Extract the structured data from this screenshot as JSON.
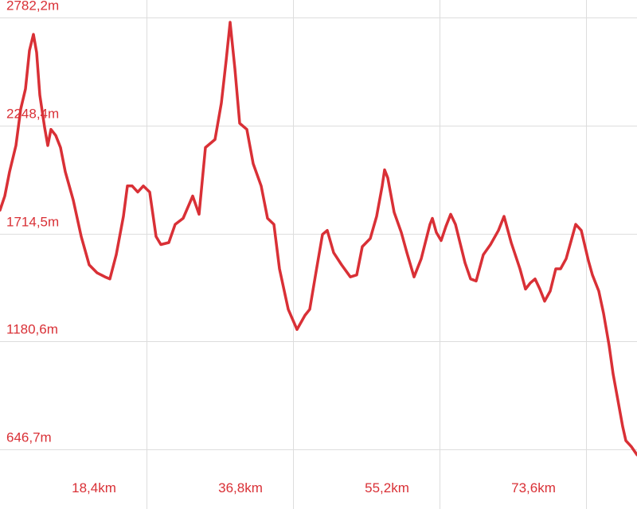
{
  "colors": {
    "line": "#d93036",
    "label": "#d93036",
    "grid": "#dddddd"
  },
  "chart_data": {
    "type": "line",
    "title": "",
    "xlabel": "",
    "ylabel": "",
    "grid": true,
    "legend": "none",
    "x_unit": "km",
    "y_unit": "m",
    "xlim": [
      0,
      80
    ],
    "ylim": [
      588,
      2870
    ],
    "y_ticks": [
      {
        "value": 2782.2,
        "label": "2782,2m"
      },
      {
        "value": 2248.4,
        "label": "2248,4m"
      },
      {
        "value": 1714.5,
        "label": "1714,5m"
      },
      {
        "value": 1180.6,
        "label": "1180,6m"
      },
      {
        "value": 646.7,
        "label": "646,7m"
      }
    ],
    "x_ticks": [
      {
        "value": 18.4,
        "label": "18,4km"
      },
      {
        "value": 36.8,
        "label": "36,8km"
      },
      {
        "value": 55.2,
        "label": "55,2km"
      },
      {
        "value": 73.6,
        "label": "73,6km"
      }
    ],
    "series": [
      {
        "values": [
          [
            0.0,
            1830
          ],
          [
            0.6,
            1900
          ],
          [
            1.2,
            2020
          ],
          [
            2.0,
            2150
          ],
          [
            2.6,
            2330
          ],
          [
            3.2,
            2430
          ],
          [
            3.7,
            2620
          ],
          [
            4.2,
            2700
          ],
          [
            4.6,
            2610
          ],
          [
            5.0,
            2400
          ],
          [
            5.6,
            2240
          ],
          [
            6.0,
            2150
          ],
          [
            6.4,
            2230
          ],
          [
            7.0,
            2200
          ],
          [
            7.6,
            2140
          ],
          [
            8.2,
            2020
          ],
          [
            9.2,
            1880
          ],
          [
            10.2,
            1700
          ],
          [
            11.2,
            1560
          ],
          [
            12.2,
            1520
          ],
          [
            13.2,
            1500
          ],
          [
            13.8,
            1490
          ],
          [
            14.6,
            1610
          ],
          [
            15.5,
            1800
          ],
          [
            16.0,
            1950
          ],
          [
            16.6,
            1950
          ],
          [
            17.3,
            1920
          ],
          [
            18.0,
            1950
          ],
          [
            18.8,
            1920
          ],
          [
            19.6,
            1700
          ],
          [
            20.2,
            1660
          ],
          [
            21.2,
            1670
          ],
          [
            22.0,
            1760
          ],
          [
            23.0,
            1790
          ],
          [
            24.2,
            1900
          ],
          [
            25.0,
            1810
          ],
          [
            25.8,
            2140
          ],
          [
            27.0,
            2180
          ],
          [
            27.8,
            2360
          ],
          [
            28.4,
            2570
          ],
          [
            28.9,
            2760
          ],
          [
            29.5,
            2530
          ],
          [
            30.1,
            2260
          ],
          [
            31.0,
            2230
          ],
          [
            31.8,
            2060
          ],
          [
            32.8,
            1950
          ],
          [
            33.6,
            1790
          ],
          [
            34.4,
            1760
          ],
          [
            35.1,
            1540
          ],
          [
            36.2,
            1340
          ],
          [
            37.3,
            1240
          ],
          [
            38.3,
            1310
          ],
          [
            38.9,
            1340
          ],
          [
            39.8,
            1550
          ],
          [
            40.5,
            1710
          ],
          [
            41.1,
            1730
          ],
          [
            41.9,
            1620
          ],
          [
            42.9,
            1560
          ],
          [
            44.0,
            1500
          ],
          [
            44.8,
            1510
          ],
          [
            45.5,
            1650
          ],
          [
            46.5,
            1690
          ],
          [
            47.3,
            1800
          ],
          [
            48.0,
            1950
          ],
          [
            48.3,
            2030
          ],
          [
            48.7,
            1990
          ],
          [
            49.5,
            1820
          ],
          [
            50.4,
            1720
          ],
          [
            51.1,
            1620
          ],
          [
            52.0,
            1500
          ],
          [
            52.9,
            1590
          ],
          [
            54.0,
            1760
          ],
          [
            54.3,
            1790
          ],
          [
            54.8,
            1720
          ],
          [
            55.4,
            1680
          ],
          [
            56.0,
            1750
          ],
          [
            56.6,
            1810
          ],
          [
            57.2,
            1760
          ],
          [
            58.4,
            1570
          ],
          [
            59.1,
            1490
          ],
          [
            59.8,
            1480
          ],
          [
            60.7,
            1610
          ],
          [
            61.6,
            1660
          ],
          [
            62.6,
            1730
          ],
          [
            63.3,
            1800
          ],
          [
            64.2,
            1670
          ],
          [
            65.3,
            1540
          ],
          [
            66.0,
            1440
          ],
          [
            66.6,
            1470
          ],
          [
            67.2,
            1490
          ],
          [
            67.8,
            1440
          ],
          [
            68.4,
            1380
          ],
          [
            69.1,
            1430
          ],
          [
            69.8,
            1540
          ],
          [
            70.4,
            1540
          ],
          [
            71.1,
            1590
          ],
          [
            72.3,
            1760
          ],
          [
            73.0,
            1730
          ],
          [
            73.9,
            1580
          ],
          [
            74.4,
            1510
          ],
          [
            75.2,
            1430
          ],
          [
            75.8,
            1320
          ],
          [
            76.5,
            1160
          ],
          [
            77.0,
            1020
          ],
          [
            77.6,
            890
          ],
          [
            78.2,
            760
          ],
          [
            78.6,
            690
          ],
          [
            79.3,
            660
          ],
          [
            80.0,
            620
          ]
        ]
      }
    ]
  }
}
